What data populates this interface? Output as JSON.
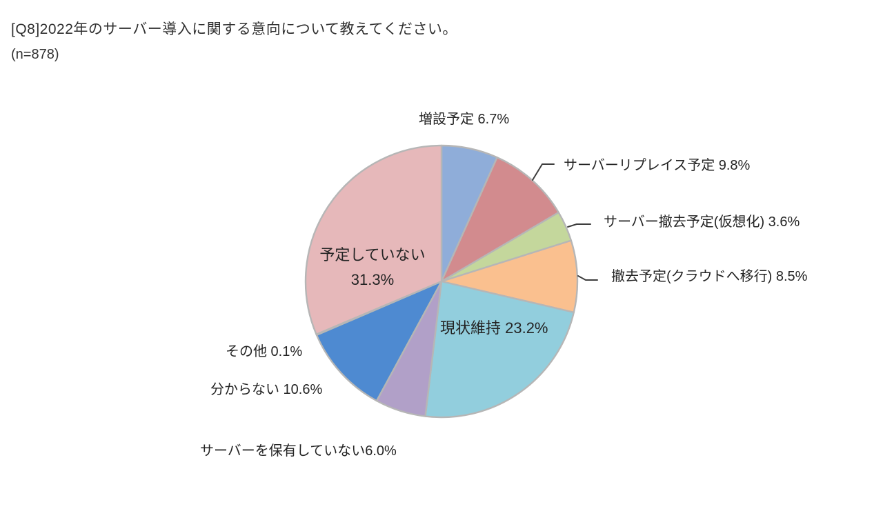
{
  "header": {
    "title": "[Q8]2022年のサーバー導入に関する意向について教えてください。",
    "sample_size": "(n=878)"
  },
  "labels": {
    "add_plan": "増設予定 6.7%",
    "replace_plan": "サーバーリプレイス予定 9.8%",
    "remove_virtualization": "サーバー撤去予定(仮想化) 3.6%",
    "remove_cloud": "撤去予定(クラウドへ移行) 8.5%",
    "status_quo": "現状維持 23.2%",
    "no_plan_name": "予定していない",
    "no_plan_value": "31.3%",
    "other": "その他 0.1%",
    "dont_know": "分からない 10.6%",
    "no_server": "サーバーを保有していない6.0%"
  },
  "colors": {
    "slice_border": "#b6b6b6",
    "leader_line": "#3d3d3d",
    "text": "#242424"
  },
  "chart_data": {
    "type": "pie",
    "title": "[Q8]2022年のサーバー導入に関する意向について教えてください。",
    "sample_size_note": "(n=878)",
    "start_angle_deg": 0,
    "direction": "clockwise",
    "legend_position": "none",
    "unit": "%",
    "series": [
      {
        "name": "増設予定",
        "value": 6.7,
        "color": "#8fadd9"
      },
      {
        "name": "サーバーリプレイス予定",
        "value": 9.8,
        "color": "#d28b8e"
      },
      {
        "name": "サーバー撤去予定(仮想化)",
        "value": 3.6,
        "color": "#c4d79c"
      },
      {
        "name": "撤去予定(クラウドへ移行)",
        "value": 8.5,
        "color": "#fac08f"
      },
      {
        "name": "現状維持",
        "value": 23.2,
        "color": "#92cedd"
      },
      {
        "name": "サーバーを保有していない",
        "value": 6.0,
        "color": "#b1a0c8"
      },
      {
        "name": "分からない",
        "value": 10.6,
        "color": "#4e8ad1"
      },
      {
        "name": "その他",
        "value": 0.1,
        "color": "#dba5a8"
      },
      {
        "name": "予定していない",
        "value": 31.3,
        "color": "#e6b8ba"
      }
    ]
  }
}
